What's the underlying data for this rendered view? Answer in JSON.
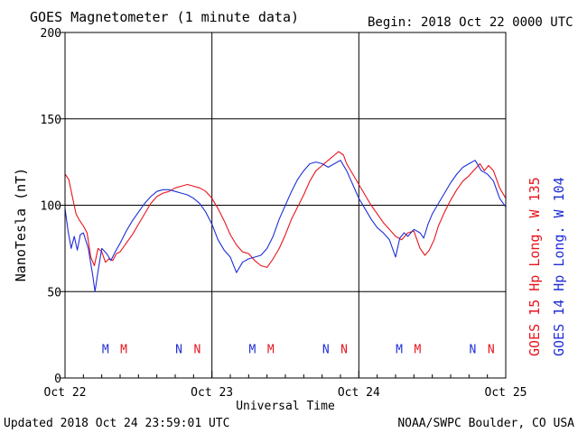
{
  "header": {
    "title": "GOES Magnetometer (1 minute data)",
    "begin": "Begin:  2018 Oct 22 0000 UTC"
  },
  "footer": {
    "updated": "Updated 2018 Oct 24 23:59:01 UTC",
    "source": "NOAA/SWPC Boulder, CO USA"
  },
  "colors": {
    "goes15": "#e8141c",
    "goes14": "#1f2fd6",
    "grid": "#000000"
  },
  "chart_data": {
    "type": "line",
    "xlabel": "Universal Time",
    "ylabel": "NanoTesla (nT)",
    "ylim": [
      0,
      200
    ],
    "yticks": [
      "0",
      "50",
      "100",
      "150",
      "200"
    ],
    "xlim_hours": [
      0,
      72
    ],
    "xticks": [
      {
        "hour": 0,
        "label": "Oct 22"
      },
      {
        "hour": 24,
        "label": "Oct 23"
      },
      {
        "hour": 48,
        "label": "Oct 24"
      },
      {
        "hour": 72,
        "label": "Oct 25"
      }
    ],
    "grid": true,
    "legend": "right-vertical",
    "series": [
      {
        "name": "GOES 15 Hp  Long. W 135",
        "color": "#e8141c",
        "points": [
          [
            0,
            118
          ],
          [
            0.6,
            115
          ],
          [
            1.2,
            105
          ],
          [
            1.8,
            95
          ],
          [
            2.4,
            91
          ],
          [
            3,
            88
          ],
          [
            3.6,
            84
          ],
          [
            4.2,
            70
          ],
          [
            4.8,
            65
          ],
          [
            5.4,
            75
          ],
          [
            6,
            73
          ],
          [
            6.6,
            67
          ],
          [
            7.2,
            69
          ],
          [
            7.8,
            68
          ],
          [
            8.4,
            72
          ],
          [
            9,
            73
          ],
          [
            10,
            78
          ],
          [
            11,
            83
          ],
          [
            12,
            89
          ],
          [
            13,
            95
          ],
          [
            14,
            101
          ],
          [
            15,
            105
          ],
          [
            16,
            107
          ],
          [
            17,
            108
          ],
          [
            18,
            110
          ],
          [
            19,
            111
          ],
          [
            20,
            112
          ],
          [
            21,
            111
          ],
          [
            22,
            110
          ],
          [
            23,
            108
          ],
          [
            24,
            104
          ],
          [
            25,
            98
          ],
          [
            26,
            91
          ],
          [
            27,
            83
          ],
          [
            28,
            77
          ],
          [
            29,
            73
          ],
          [
            30,
            72
          ],
          [
            31,
            68
          ],
          [
            32,
            65
          ],
          [
            33,
            64
          ],
          [
            34,
            69
          ],
          [
            35,
            75
          ],
          [
            36,
            83
          ],
          [
            37,
            92
          ],
          [
            38,
            99
          ],
          [
            39,
            106
          ],
          [
            40,
            114
          ],
          [
            41,
            120
          ],
          [
            42,
            123
          ],
          [
            43,
            126
          ],
          [
            44,
            129
          ],
          [
            44.7,
            131
          ],
          [
            45.5,
            129
          ],
          [
            46,
            124
          ],
          [
            47,
            118
          ],
          [
            48,
            112
          ],
          [
            49,
            106
          ],
          [
            50,
            100
          ],
          [
            51,
            95
          ],
          [
            52,
            90
          ],
          [
            53,
            86
          ],
          [
            54,
            82
          ],
          [
            55,
            80
          ],
          [
            56,
            84
          ],
          [
            57,
            85
          ],
          [
            58,
            75
          ],
          [
            58.8,
            71
          ],
          [
            59.5,
            74
          ],
          [
            60.3,
            80
          ],
          [
            61,
            88
          ],
          [
            62,
            96
          ],
          [
            63,
            103
          ],
          [
            64,
            109
          ],
          [
            65,
            114
          ],
          [
            66,
            117
          ],
          [
            67,
            121
          ],
          [
            67.8,
            124
          ],
          [
            68.5,
            120
          ],
          [
            69.2,
            123
          ],
          [
            70,
            120
          ],
          [
            71,
            110
          ],
          [
            72,
            104
          ]
        ]
      },
      {
        "name": "GOES 14 Hp  Long. W 104",
        "color": "#1f2fd6",
        "points": [
          [
            0,
            98
          ],
          [
            0.5,
            85
          ],
          [
            1,
            75
          ],
          [
            1.5,
            82
          ],
          [
            2,
            74
          ],
          [
            2.5,
            83
          ],
          [
            3,
            84
          ],
          [
            3.8,
            75
          ],
          [
            4.5,
            60
          ],
          [
            4.9,
            50
          ],
          [
            5.4,
            62
          ],
          [
            6,
            75
          ],
          [
            6.8,
            72
          ],
          [
            7.5,
            68
          ],
          [
            8.2,
            73
          ],
          [
            9,
            78
          ],
          [
            10,
            85
          ],
          [
            11,
            91
          ],
          [
            12,
            96
          ],
          [
            13,
            101
          ],
          [
            14,
            105
          ],
          [
            15,
            108
          ],
          [
            16,
            109
          ],
          [
            17,
            109
          ],
          [
            18,
            108
          ],
          [
            19,
            107
          ],
          [
            20,
            106
          ],
          [
            21,
            104
          ],
          [
            22,
            101
          ],
          [
            23,
            96
          ],
          [
            24,
            89
          ],
          [
            25,
            80
          ],
          [
            26,
            74
          ],
          [
            27,
            70
          ],
          [
            28,
            61
          ],
          [
            29,
            67
          ],
          [
            30,
            69
          ],
          [
            31,
            70
          ],
          [
            32,
            71
          ],
          [
            33,
            75
          ],
          [
            34,
            82
          ],
          [
            35,
            92
          ],
          [
            36,
            100
          ],
          [
            37,
            108
          ],
          [
            38,
            115
          ],
          [
            39,
            120
          ],
          [
            40,
            124
          ],
          [
            41,
            125
          ],
          [
            42,
            124
          ],
          [
            43,
            122
          ],
          [
            44,
            124
          ],
          [
            45,
            126
          ],
          [
            46,
            120
          ],
          [
            47,
            112
          ],
          [
            48,
            104
          ],
          [
            49,
            98
          ],
          [
            50,
            92
          ],
          [
            51,
            87
          ],
          [
            52,
            84
          ],
          [
            53,
            80
          ],
          [
            53.6,
            74
          ],
          [
            54,
            70
          ],
          [
            54.7,
            81
          ],
          [
            55.4,
            84
          ],
          [
            56,
            82
          ],
          [
            57,
            86
          ],
          [
            58,
            84
          ],
          [
            58.6,
            81
          ],
          [
            59.3,
            89
          ],
          [
            60,
            95
          ],
          [
            61,
            101
          ],
          [
            62,
            107
          ],
          [
            63,
            113
          ],
          [
            64,
            118
          ],
          [
            65,
            122
          ],
          [
            66,
            124
          ],
          [
            67,
            126
          ],
          [
            68,
            120
          ],
          [
            69,
            118
          ],
          [
            70,
            114
          ],
          [
            71,
            104
          ],
          [
            72,
            99
          ]
        ]
      }
    ],
    "annotations": [
      {
        "label": "M",
        "hour": 6.6,
        "series": "GOES 14 Hp  Long. W 104"
      },
      {
        "label": "M",
        "hour": 9.6,
        "series": "GOES 15 Hp  Long. W 135"
      },
      {
        "label": "N",
        "hour": 18.6,
        "series": "GOES 14 Hp  Long. W 104"
      },
      {
        "label": "N",
        "hour": 21.6,
        "series": "GOES 15 Hp  Long. W 135"
      },
      {
        "label": "M",
        "hour": 30.6,
        "series": "GOES 14 Hp  Long. W 104"
      },
      {
        "label": "M",
        "hour": 33.6,
        "series": "GOES 15 Hp  Long. W 135"
      },
      {
        "label": "N",
        "hour": 42.6,
        "series": "GOES 14 Hp  Long. W 104"
      },
      {
        "label": "N",
        "hour": 45.6,
        "series": "GOES 15 Hp  Long. W 135"
      },
      {
        "label": "M",
        "hour": 54.6,
        "series": "GOES 14 Hp  Long. W 104"
      },
      {
        "label": "M",
        "hour": 57.6,
        "series": "GOES 15 Hp  Long. W 135"
      },
      {
        "label": "N",
        "hour": 66.6,
        "series": "GOES 14 Hp  Long. W 104"
      },
      {
        "label": "N",
        "hour": 69.6,
        "series": "GOES 15 Hp  Long. W 135"
      }
    ],
    "annotation_y": 17
  }
}
